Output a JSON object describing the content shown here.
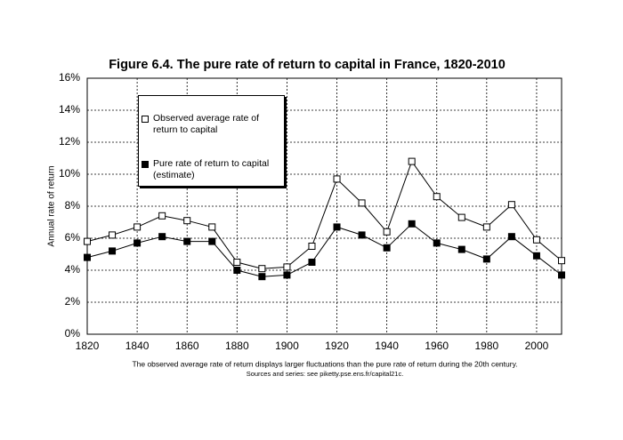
{
  "chart_data": {
    "type": "line",
    "title": "Figure 6.4. The pure rate of return to capital in France, 1820-2010",
    "y_label": "Annual rate of return",
    "notes": [
      "The observed average rate of return displays larger fluctuations than the pure rate of return during the 20th century.",
      "Sources and series: see piketty.pse.ens.fr/capital21c."
    ],
    "x": [
      1820,
      1830,
      1840,
      1850,
      1860,
      1870,
      1880,
      1890,
      1900,
      1910,
      1920,
      1930,
      1940,
      1950,
      1960,
      1970,
      1980,
      1990,
      2000,
      2010
    ],
    "series": [
      {
        "name": "Observed average rate of return to capital",
        "color": "#ffffff",
        "values": [
          5.8,
          6.2,
          6.7,
          7.4,
          7.1,
          6.7,
          4.5,
          4.1,
          4.2,
          5.5,
          9.7,
          8.2,
          6.4,
          10.8,
          8.6,
          7.3,
          6.7,
          8.1,
          5.9,
          4.6
        ]
      },
      {
        "name": "Pure rate of return to capital (estimate)",
        "color": "#000000",
        "values": [
          4.8,
          5.2,
          5.7,
          6.1,
          5.8,
          5.8,
          4.0,
          3.6,
          3.7,
          4.5,
          6.7,
          6.2,
          5.4,
          6.9,
          5.7,
          5.3,
          4.7,
          6.1,
          4.9,
          3.7
        ]
      }
    ],
    "xlim": [
      1820,
      2010
    ],
    "xticks": [
      1820,
      1840,
      1860,
      1880,
      1900,
      1920,
      1940,
      1960,
      1980,
      2000
    ],
    "ylim": [
      0,
      16
    ],
    "yticks": [
      {
        "value": 0,
        "label": "0%"
      },
      {
        "value": 2,
        "label": "2%"
      },
      {
        "value": 4,
        "label": "4%"
      },
      {
        "value": 6,
        "label": "6%"
      },
      {
        "value": 8,
        "label": "8%"
      },
      {
        "value": 10,
        "label": "10%"
      },
      {
        "value": 12,
        "label": "12%"
      },
      {
        "value": 14,
        "label": "14%"
      },
      {
        "value": 16,
        "label": "16%"
      }
    ],
    "grid": true,
    "legend": "upper left"
  }
}
